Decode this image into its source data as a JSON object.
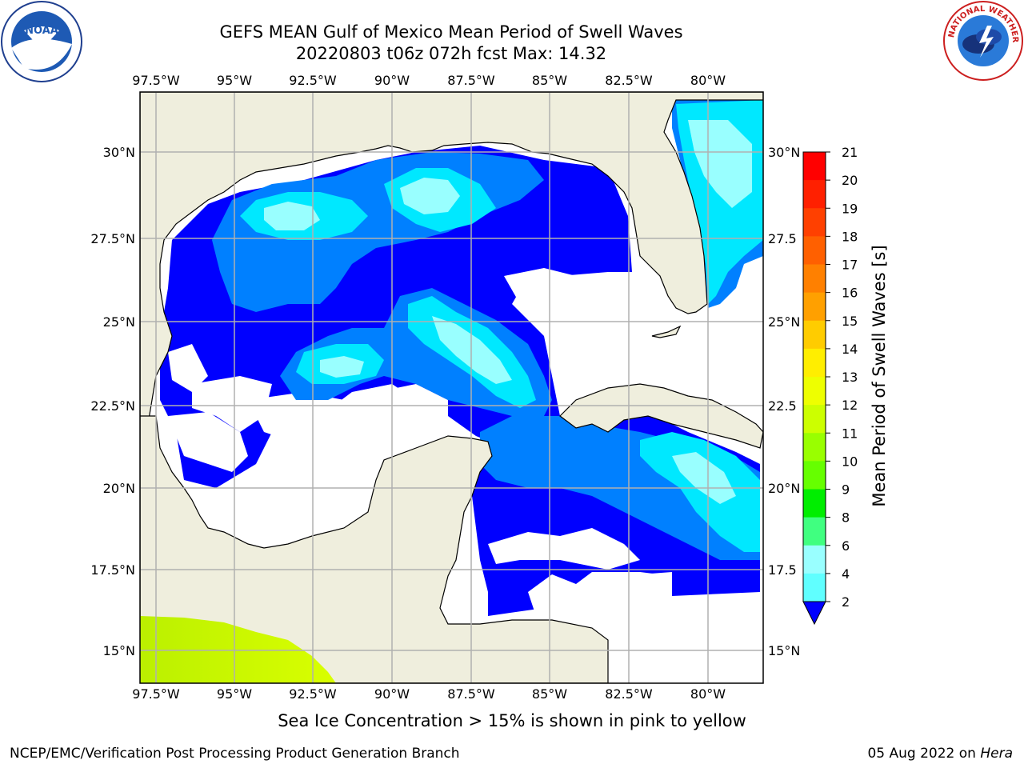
{
  "header": {
    "title_line1": "GEFS MEAN Gulf of Mexico Mean Period of Swell Waves",
    "title_line2": "20220803 t06z 072h fcst   Max: 14.32"
  },
  "logos": {
    "left": "noaa-logo",
    "right": "nws-logo"
  },
  "map": {
    "lon_ticks": [
      "97.5°W",
      "95°W",
      "92.5°W",
      "90°W",
      "87.5°W",
      "85°W",
      "82.5°W",
      "80°W"
    ],
    "lat_ticks_left": [
      "30°N",
      "27.5°N",
      "25°N",
      "22.5°N",
      "20°N",
      "17.5°N",
      "15°N"
    ],
    "lat_ticks_right": [
      "30°N",
      "27.5",
      "25°N",
      "22.5",
      "20°N",
      "17.5",
      "15°N"
    ],
    "colors": {
      "land": "#efeedd",
      "ocean_low": "#0000ff",
      "ocean_mid": "#0080ff",
      "ocean_high": "#00ffff",
      "ocean_cyan2": "#40ffff",
      "ocean_cyan3": "#80ffff",
      "pacific": "#ccff00",
      "pacific2": "#aaff00"
    }
  },
  "colorbar": {
    "label": "Mean Period of Swell Waves [s]",
    "ticks": [
      "21",
      "20",
      "19",
      "18",
      "17",
      "16",
      "15",
      "14",
      "13",
      "12",
      "11",
      "10",
      "9",
      "8",
      "6",
      "4",
      "2"
    ],
    "colors": [
      "#ff0000",
      "#ff2000",
      "#ff4000",
      "#ff6000",
      "#ff8000",
      "#ffa000",
      "#ffcc00",
      "#ffee00",
      "#eeff00",
      "#ccff00",
      "#99ff00",
      "#66ff00",
      "#00ee00",
      "#40ff80",
      "#99ffff",
      "#60ffff",
      "#30ffff",
      "#00e8ff",
      "#0080ff",
      "#0000ff"
    ]
  },
  "footer": {
    "note": "Sea Ice Concentration > 15% is shown in pink to yellow",
    "credit": "NCEP/EMC/Verification Post Processing Product Generation Branch",
    "date": "05 Aug 2022 on",
    "host": "Hera"
  }
}
